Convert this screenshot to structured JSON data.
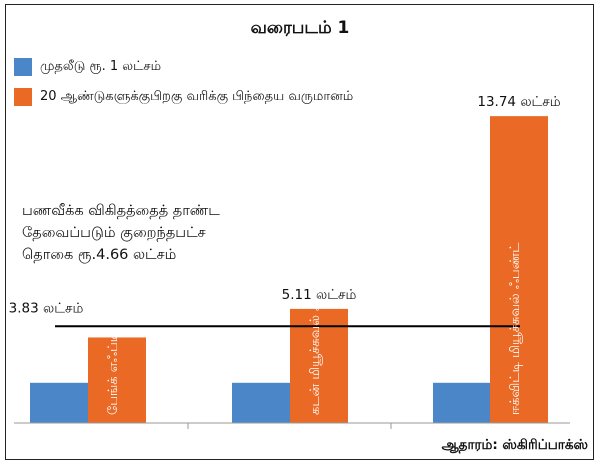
{
  "chart_data": {
    "type": "bar",
    "title": "வரைபடம் 1",
    "categories": [
      "பேங்க் எஃப்டி",
      "கடன் மியூச்சுவல் ஃபண்ட்",
      "ஈக்விட்டி மியூச்சுவல் ஃபண்ட்"
    ],
    "series": [
      {
        "name": "முதலீடு ரூ. 1 லட்சம்",
        "color": "#4a86c8",
        "values": [
          1,
          1,
          1
        ]
      },
      {
        "name": "20 ஆண்டுகளுக்குபிறகு வரிக்கு பிந்தைய வருமானம்",
        "color": "#ea6a25",
        "values": [
          3.83,
          5.11,
          13.74
        ]
      }
    ],
    "data_labels": [
      "3.83 லட்சம்",
      "5.11 லட்சம்",
      "13.74 லட்சம்"
    ],
    "threshold": {
      "value": 4.66,
      "label_lines": [
        "பணவீக்க விகிதத்தைத் தாண்ட",
        "தேவைப்படும் குறைந்தபட்ச",
        "தொகை ரூ.4.66 லட்சம்"
      ]
    },
    "ylim": [
      0,
      15
    ],
    "grid": false,
    "legend": "top-left",
    "source": "ஆதாரம்: ஸ்கிரிப்பாக்ஸ்"
  }
}
